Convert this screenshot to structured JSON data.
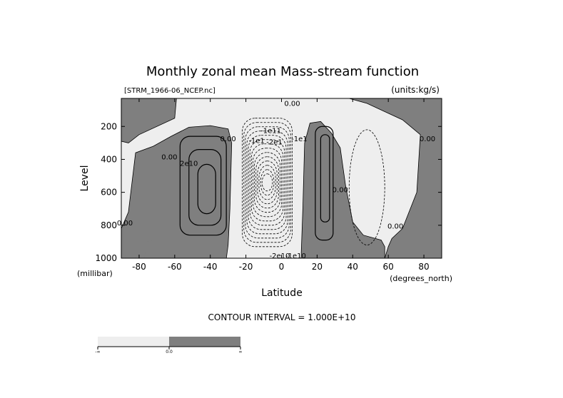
{
  "chart_data": {
    "type": "contour",
    "title": "Monthly zonal mean Mass-stream function",
    "source_label": "[STRM_1966-06_NCEP.nc]",
    "units_label": "(units:kg/s)",
    "xlabel": "Latitude",
    "x_units": "(degrees_north)",
    "ylabel": "Level",
    "y_units": "(millibar)",
    "xlim": [
      -90,
      90
    ],
    "ylim": [
      1000,
      30
    ],
    "x_ticks": [
      -80,
      -60,
      -40,
      -20,
      0,
      20,
      40,
      60,
      80
    ],
    "y_ticks": [
      200,
      400,
      600,
      800,
      1000
    ],
    "contour_interval_text": "CONTOUR INTERVAL = 1.000E+10",
    "contour_interval": 10000000000,
    "shading": {
      "negative_color": "#eeeeee",
      "positive_color": "#7f7f7f",
      "threshold": 0
    },
    "colorbar": {
      "left_label": "-∞",
      "mid_label": "0.0",
      "right_label": "∞"
    },
    "contour_labels": [
      {
        "text": "0.00",
        "lat": 6,
        "lev": 75
      },
      {
        "text": "0.00",
        "lat": -63,
        "lev": 400
      },
      {
        "text": "0.00",
        "lat": -30,
        "lev": 290
      },
      {
        "text": "0.00",
        "lat": 33,
        "lev": 600
      },
      {
        "text": "0.00",
        "lat": 64,
        "lev": 820
      },
      {
        "text": "0.00",
        "lat": 82,
        "lev": 290
      },
      {
        "text": "0.00",
        "lat": -88,
        "lev": 800
      },
      {
        "text": "2e10",
        "lat": -52,
        "lev": 440
      },
      {
        "text": "-1e11",
        "lat": -6,
        "lev": 240
      },
      {
        "text": "-2e10",
        "lat": -1,
        "lev": 1000
      },
      {
        "text": "-2e1",
        "lat": -4,
        "lev": 310
      },
      {
        "text": "-1e1",
        "lat": 10,
        "lev": 290
      },
      {
        "text": "-1e1",
        "lat": -14,
        "lev": 300
      },
      {
        "text": "-1e10",
        "lat": 8,
        "lev": 1000
      }
    ]
  }
}
